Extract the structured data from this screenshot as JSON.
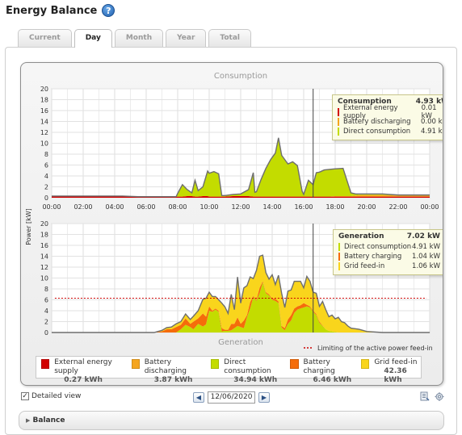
{
  "header": {
    "title": "Energy Balance",
    "help_icon": "help-icon"
  },
  "tabs": [
    {
      "label": "Current",
      "active": false
    },
    {
      "label": "Day",
      "active": true
    },
    {
      "label": "Month",
      "active": false
    },
    {
      "label": "Year",
      "active": false
    },
    {
      "label": "Total",
      "active": false
    }
  ],
  "chart_data": [
    {
      "type": "area",
      "title": "Consumption",
      "ylabel": "Power [kW]",
      "ylim": [
        0,
        20
      ],
      "yticks": [
        0,
        2,
        4,
        6,
        8,
        10,
        12,
        14,
        16,
        18,
        20
      ],
      "xticks": [
        "00:00",
        "02:00",
        "04:00",
        "06:00",
        "08:00",
        "10:00",
        "12:00",
        "14:00",
        "16:00",
        "18:00",
        "20:00",
        "22:00",
        "00:00"
      ],
      "x_hours": [
        0,
        4.5,
        5.5,
        6,
        6.5,
        7.5,
        7.9,
        8,
        8.3,
        8.6,
        8.9,
        9.1,
        9.3,
        9.6,
        9.9,
        10,
        10.3,
        10.6,
        10.8,
        11,
        11.5,
        12,
        12.5,
        12.8,
        12.9,
        13,
        13.3,
        13.6,
        13.9,
        14,
        14.2,
        14.4,
        14.6,
        14.8,
        15,
        15.3,
        15.6,
        15.9,
        16,
        16.3,
        16.6,
        16.8,
        17,
        17.3,
        17.6,
        18,
        18.5,
        19,
        19.3,
        19.6,
        20,
        21,
        22,
        23,
        24
      ],
      "series": [
        {
          "name": "External energy supply",
          "color": "#d20000",
          "values": [
            0.3,
            0.3,
            0.2,
            0.2,
            0.2,
            0.2,
            0.2,
            0.2,
            0.2,
            0.3,
            0.3,
            0.2,
            0.2,
            0.3,
            0.3,
            0.2,
            0.2,
            0.2,
            0.2,
            0.2,
            0.3,
            0.3,
            0.3,
            0.2,
            0.2,
            0.2,
            0.2,
            0.2,
            0.2,
            0.2,
            0.2,
            0.2,
            0.2,
            0.2,
            0.2,
            0.2,
            0.2,
            0.2,
            0.2,
            0.2,
            0.2,
            0.2,
            0.2,
            0.2,
            0.2,
            0.2,
            0.2,
            0.2,
            0.2,
            0.2,
            0.2,
            0.2,
            0.2,
            0.2,
            0.2
          ]
        },
        {
          "name": "Battery discharging",
          "color": "#f5a51e",
          "values": [
            0,
            0,
            0,
            0,
            0,
            0,
            0,
            0,
            0,
            0,
            0,
            0,
            0,
            0,
            0,
            0,
            0,
            0,
            0,
            0,
            0,
            0,
            0,
            0,
            0,
            0,
            0,
            0,
            0,
            0,
            0,
            0,
            0,
            0,
            0,
            0,
            0,
            0,
            0,
            0,
            0,
            0,
            0,
            0,
            0,
            0.1,
            0.1,
            0.1,
            0.2,
            0.3,
            0.3,
            0.3,
            0.2,
            0.2,
            0.2
          ]
        },
        {
          "name": "Direct consumption",
          "color": "#c3dc00",
          "values": [
            0,
            0,
            0,
            0,
            0,
            0,
            0,
            0.6,
            2.2,
            1.2,
            0.6,
            3.0,
            1.1,
            1.7,
            4.6,
            4.3,
            4.6,
            4.2,
            0.2,
            0.2,
            0.3,
            0.4,
            1.2,
            4.4,
            0.8,
            0.9,
            3.2,
            5.2,
            6.8,
            7.2,
            8.0,
            10.8,
            7.6,
            6.8,
            6.0,
            6.4,
            5.7,
            1.0,
            0.4,
            3.0,
            2.2,
            4.4,
            4.5,
            4.9,
            5.0,
            5.0,
            5.1,
            0.6,
            0.3,
            0.2,
            0.2,
            0.2,
            0.1,
            0.1,
            0.1
          ]
        }
      ]
    },
    {
      "type": "area",
      "title": "Generation",
      "ylabel": "Power [kW]",
      "ylim": [
        0,
        20
      ],
      "yticks": [
        0,
        2,
        4,
        6,
        8,
        10,
        12,
        14,
        16,
        18,
        20
      ],
      "limit_line": {
        "label": "Limiting of the active power feed-in",
        "value": 6.3,
        "color": "#cc0000"
      },
      "x_hours": [
        0,
        6,
        6.5,
        7,
        7.3,
        7.6,
        7.9,
        8.2,
        8.5,
        8.8,
        9,
        9.3,
        9.6,
        9.8,
        10,
        10.2,
        10.4,
        10.6,
        10.8,
        11,
        11.2,
        11.4,
        11.6,
        11.8,
        12,
        12.2,
        12.4,
        12.6,
        12.8,
        13,
        13.2,
        13.4,
        13.6,
        13.8,
        14,
        14.2,
        14.4,
        14.6,
        14.8,
        15,
        15.2,
        15.4,
        15.6,
        15.8,
        16,
        16.2,
        16.4,
        16.6,
        16.8,
        17,
        17.2,
        17.4,
        17.6,
        17.8,
        18,
        18.2,
        18.4,
        18.6,
        18.8,
        19,
        19.5,
        20,
        21,
        24
      ],
      "series": [
        {
          "name": "Direct consumption",
          "color": "#c3dc00",
          "values": [
            0,
            0,
            0,
            0,
            0,
            0,
            0,
            0.6,
            1.4,
            1.0,
            0.6,
            1.6,
            1.1,
            1.5,
            4.0,
            3.8,
            4.2,
            3.8,
            0.2,
            0.3,
            0.3,
            0.4,
            0.8,
            1.2,
            1.0,
            0.8,
            2.8,
            4.4,
            6.5,
            5.8,
            7.2,
            9.2,
            7.2,
            6.8,
            6.0,
            5.8,
            5.4,
            0.9,
            0.4,
            1.6,
            2.2,
            3.6,
            4.2,
            4.4,
            4.6,
            4.8,
            4.6,
            3.8,
            3.2,
            1.8,
            1.2,
            0.6,
            0.3,
            0.2,
            0.1,
            0,
            0,
            0,
            0,
            0,
            0,
            0,
            0,
            0
          ]
        },
        {
          "name": "Battery charging",
          "color": "#f56c0a",
          "values": [
            0,
            0,
            0,
            0.2,
            0.6,
            0.6,
            1.0,
            0.8,
            1.2,
            0.6,
            1.4,
            1.0,
            2.4,
            1.4,
            0.8,
            0.2,
            0.2,
            0.2,
            0.6,
            0.2,
            0.2,
            1.2,
            0.8,
            1.6,
            0.6,
            1.4,
            0.4,
            1.2,
            0.2,
            0.2,
            1.0,
            0.2,
            0.2,
            0.2,
            0.2,
            0.4,
            0.3,
            0.3,
            0.4,
            0.8,
            1.0,
            0.8,
            0.6,
            0.6,
            0.8,
            0.3,
            0.2,
            0.2,
            0.2,
            0.2,
            0.1,
            0,
            0,
            0,
            0,
            0,
            0,
            0,
            0,
            0,
            0,
            0,
            0,
            0
          ]
        },
        {
          "name": "Grid feed-in",
          "color": "#f9d51c",
          "values": [
            0,
            0,
            0,
            0.2,
            0.3,
            0.4,
            0.6,
            0.6,
            0.8,
            0.8,
            1.0,
            1.4,
            2.6,
            3.4,
            2.6,
            2.6,
            2.2,
            2.0,
            4.6,
            4.2,
            3.0,
            5.4,
            2.6,
            7.4,
            3.8,
            6.0,
            5.4,
            4.6,
            3.2,
            5.4,
            5.8,
            4.8,
            3.6,
            2.8,
            4.4,
            2.6,
            4.8,
            6.0,
            3.8,
            5.2,
            4.6,
            5.0,
            4.6,
            4.4,
            2.8,
            5.2,
            4.6,
            3.4,
            3.8,
            2.8,
            4.4,
            3.6,
            2.6,
            3.0,
            2.4,
            2.8,
            2.0,
            1.8,
            1.2,
            0.8,
            0.6,
            0.2,
            0,
            0
          ]
        }
      ]
    }
  ],
  "tooltips": {
    "consumption": {
      "title": "Consumption",
      "total": "4.93 kW",
      "rows": [
        {
          "label": "External energy supply",
          "value": "0.01 kW",
          "color": "#d20000"
        },
        {
          "label": "Battery discharging",
          "value": "0.00 kW",
          "color": "#f5a51e"
        },
        {
          "label": "Direct consumption",
          "value": "4.91 kW",
          "color": "#c3dc00"
        }
      ]
    },
    "generation": {
      "title": "Generation",
      "total": "7.02 kW",
      "rows": [
        {
          "label": "Direct consumption",
          "value": "4.91 kW",
          "color": "#c3dc00"
        },
        {
          "label": "Battery charging",
          "value": "1.04 kW",
          "color": "#f56c0a"
        },
        {
          "label": "Grid feed-in",
          "value": "1.06 kW",
          "color": "#f9d51c"
        }
      ]
    }
  },
  "legend": [
    {
      "label": "External energy supply",
      "value": "0.27 kWh",
      "color": "#d20000"
    },
    {
      "label": "Battery discharging",
      "value": "3.87 kWh",
      "color": "#f5a51e"
    },
    {
      "label": "Direct consumption",
      "value": "34.94 kWh",
      "color": "#c3dc00"
    },
    {
      "label": "Battery charging",
      "value": "6.46 kWh",
      "color": "#f56c0a"
    },
    {
      "label": "Grid feed-in",
      "value": "42.36 kWh",
      "color": "#f9d51c"
    }
  ],
  "controls": {
    "detailed_view_label": "Detailed view",
    "detailed_view_checked": true,
    "date": "12/06/2020",
    "prev_icon": "chevron-left-icon",
    "next_icon": "chevron-right-icon",
    "tool_icons": [
      "export-icon",
      "settings-icon"
    ]
  },
  "balance": {
    "label": "Balance",
    "icon": "triangle-right-icon"
  }
}
